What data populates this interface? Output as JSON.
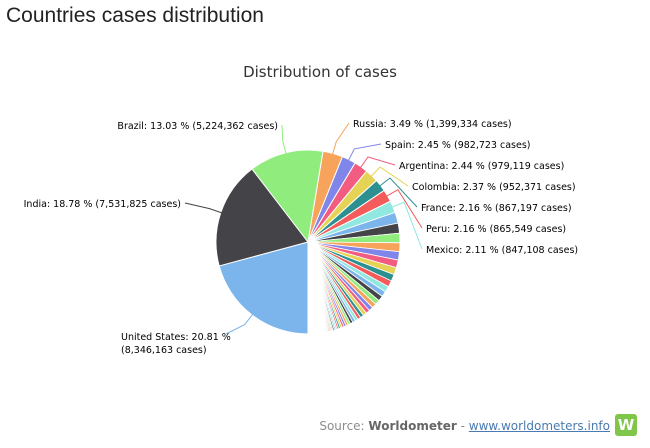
{
  "page": {
    "title": "Countries cases distribution"
  },
  "source": {
    "prefix": "Source:",
    "brand": "Worldometer",
    "separator": "-",
    "link_text": "www.worldometers.info",
    "logo_letter": "W"
  },
  "chart_data": {
    "type": "pie",
    "title": "Distribution of cases",
    "slices": [
      {
        "name": "United States",
        "percent": 20.81,
        "cases": "8,346,163",
        "color": "#7cb5ec",
        "label_line1": "United States: 20.81 %",
        "label_line2": "(8,346,163 cases)"
      },
      {
        "name": "India",
        "percent": 18.78,
        "cases": "7,531,825",
        "color": "#434348",
        "label_line1": "India: 18.78 % (7,531,825 cases)",
        "label_line2": ""
      },
      {
        "name": "Brazil",
        "percent": 13.03,
        "cases": "5,224,362",
        "color": "#90ed7d",
        "label_line1": "Brazil: 13.03 % (5,224,362 cases)",
        "label_line2": ""
      },
      {
        "name": "Russia",
        "percent": 3.49,
        "cases": "1,399,334",
        "color": "#f7a35c",
        "label_line1": "Russia: 3.49 % (1,399,334 cases)",
        "label_line2": ""
      },
      {
        "name": "Spain",
        "percent": 2.45,
        "cases": "982,723",
        "color": "#8085e9",
        "label_line1": "Spain: 2.45 % (982,723 cases)",
        "label_line2": ""
      },
      {
        "name": "Argentina",
        "percent": 2.44,
        "cases": "979,119",
        "color": "#f15c80",
        "label_line1": "Argentina: 2.44 % (979,119 cases)",
        "label_line2": ""
      },
      {
        "name": "Colombia",
        "percent": 2.37,
        "cases": "952,371",
        "color": "#e4d354",
        "label_line1": "Colombia: 2.37 % (952,371 cases)",
        "label_line2": ""
      },
      {
        "name": "France",
        "percent": 2.16,
        "cases": "867,197",
        "color": "#2b908f",
        "label_line1": "France: 2.16 % (867,197 cases)",
        "label_line2": ""
      },
      {
        "name": "Peru",
        "percent": 2.16,
        "cases": "865,549",
        "color": "#f45b5b",
        "label_line1": "Peru: 2.16 % (865,549 cases)",
        "label_line2": ""
      },
      {
        "name": "Mexico",
        "percent": 2.11,
        "cases": "847,108",
        "color": "#91e8e1",
        "label_line1": "Mexico: 2.11 % (847,108 cases)",
        "label_line2": ""
      }
    ],
    "others_palette": [
      "#7cb5ec",
      "#434348",
      "#90ed7d",
      "#f7a35c",
      "#8085e9",
      "#f15c80",
      "#e4d354",
      "#2b908f",
      "#f45b5b",
      "#91e8e1"
    ]
  }
}
